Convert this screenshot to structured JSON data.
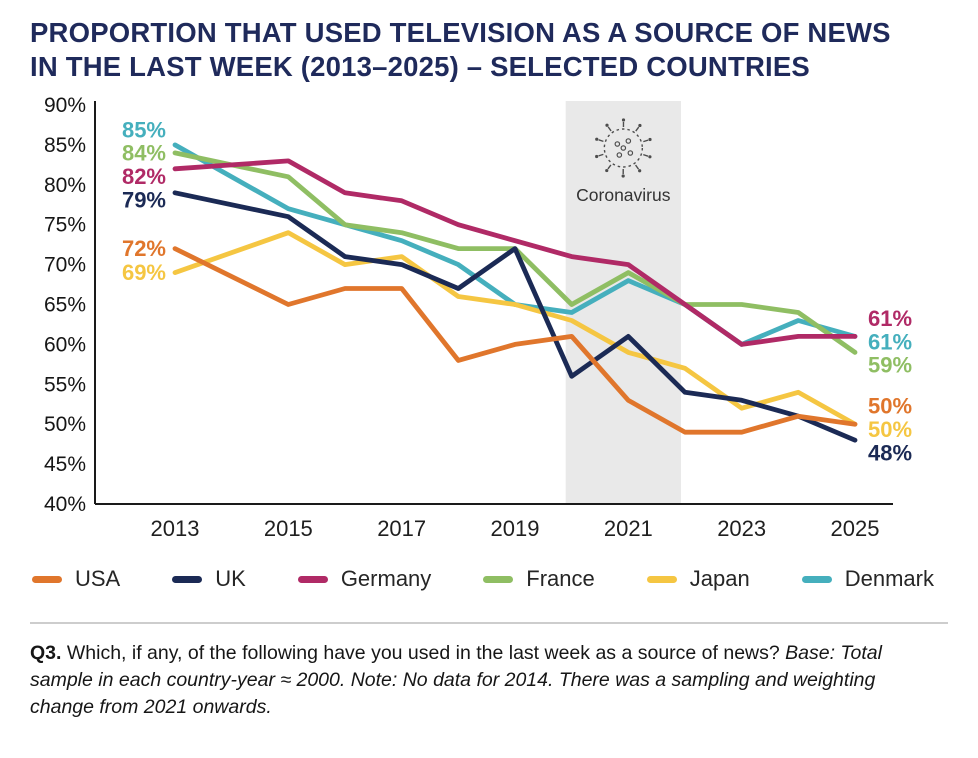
{
  "title": {
    "line1": "PROPORTION THAT USED TELEVISION AS A SOURCE OF NEWS",
    "line2": "IN THE LAST WEEK (2013–2025) – SELECTED COUNTRIES"
  },
  "chart_data": {
    "type": "line",
    "x_years": [
      2013,
      2015,
      2016,
      2017,
      2018,
      2019,
      2020,
      2021,
      2022,
      2023,
      2024,
      2025
    ],
    "x_tick_years": [
      2013,
      2015,
      2017,
      2019,
      2021,
      2023,
      2025
    ],
    "y_ticks": [
      90,
      85,
      80,
      75,
      70,
      65,
      60,
      55,
      50,
      45,
      40
    ],
    "ylim": [
      40,
      90
    ],
    "unit": "%",
    "series": [
      {
        "name": "USA",
        "color": "#E0762C",
        "values": [
          72,
          65,
          67,
          67,
          58,
          60,
          61,
          53,
          49,
          49,
          51,
          50
        ],
        "first_label": "72%",
        "last_label": "50%"
      },
      {
        "name": "UK",
        "color": "#1B2A55",
        "values": [
          79,
          76,
          71,
          70,
          67,
          72,
          56,
          61,
          54,
          53,
          51,
          48
        ],
        "first_label": "79%",
        "last_label": "48%"
      },
      {
        "name": "Germany",
        "color": "#B02A66",
        "values": [
          82,
          83,
          79,
          78,
          75,
          73,
          71,
          70,
          65,
          60,
          61,
          61
        ],
        "first_label": "82%",
        "last_label": "61%"
      },
      {
        "name": "France",
        "color": "#8FBE63",
        "values": [
          84,
          81,
          75,
          74,
          72,
          72,
          65,
          69,
          65,
          65,
          64,
          59
        ],
        "first_label": "84%",
        "last_label": "59%"
      },
      {
        "name": "Japan",
        "color": "#F5C642",
        "values": [
          69,
          74,
          70,
          71,
          66,
          65,
          63,
          59,
          57,
          52,
          54,
          50
        ],
        "first_label": "69%",
        "last_label": "50%"
      },
      {
        "name": "Denmark",
        "color": "#45AFBD",
        "values": [
          85,
          77,
          75,
          73,
          70,
          65,
          64,
          68,
          65,
          60,
          63,
          61
        ],
        "first_label": "85%",
        "last_label": "61%"
      }
    ],
    "annotation": {
      "label": "Coronavirus",
      "from_year": 2020,
      "to_year": 2022
    }
  },
  "footnote": {
    "q_label": "Q3.",
    "text": " Which, if any, of the following have you used in the last week as a source of news? ",
    "italic": "Base: Total sample in each country-year ≈ 2000. Note: No data for 2014. There was a sampling and weighting change from 2021 onwards."
  }
}
